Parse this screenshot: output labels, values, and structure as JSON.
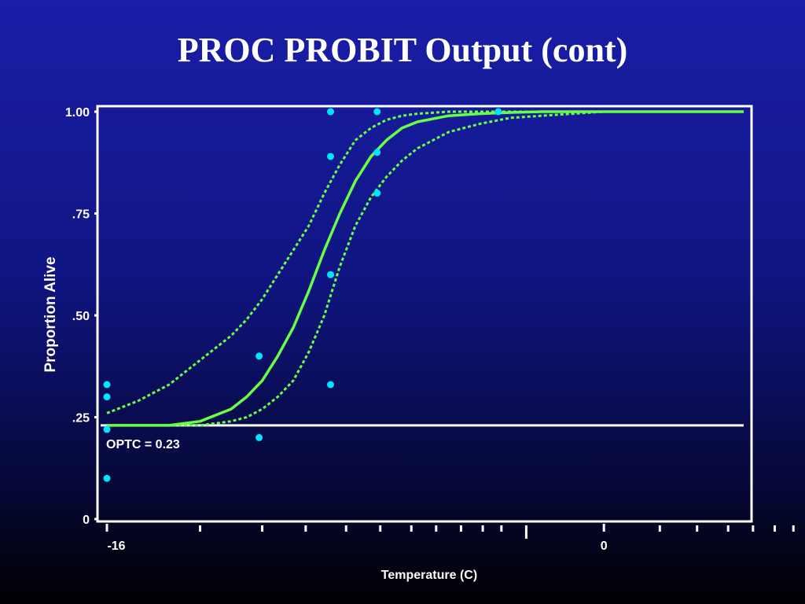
{
  "title": "PROC PROBIT Output (cont)",
  "chart_data": {
    "type": "scatter",
    "ylabel": "Proportion Alive",
    "xlabel": "Temperature (C)",
    "xlim": [
      -16,
      4.5
    ],
    "ylim": [
      0,
      1
    ],
    "y_ticks": [
      {
        "value": 1.0,
        "label": "1.00"
      },
      {
        "value": 0.75,
        "label": ".75"
      },
      {
        "value": 0.5,
        "label": ".50"
      },
      {
        "value": 0.25,
        "label": ".25"
      },
      {
        "value": 0.0,
        "label": "0"
      }
    ],
    "x_tick_labels": [
      {
        "value": -16,
        "label": "-16"
      },
      {
        "value": 0,
        "label": "0"
      }
    ],
    "x_minor_ticks": [
      -13,
      -11,
      -9.6,
      -8.3,
      -7.2,
      -6.2,
      -5.4,
      -4.6,
      -3.9,
      -3.3,
      1.8,
      3.0,
      4.0,
      4.8,
      5.5,
      6.1,
      6.6,
      7.0
    ],
    "points": [
      {
        "x": -16,
        "y": 0.33
      },
      {
        "x": -16,
        "y": 0.3
      },
      {
        "x": -16,
        "y": 0.22
      },
      {
        "x": -16,
        "y": 0.1
      },
      {
        "x": -11.1,
        "y": 0.4
      },
      {
        "x": -11.1,
        "y": 0.2
      },
      {
        "x": -8.8,
        "y": 1.0
      },
      {
        "x": -8.8,
        "y": 0.89
      },
      {
        "x": -8.8,
        "y": 0.6
      },
      {
        "x": -8.8,
        "y": 0.33
      },
      {
        "x": -7.3,
        "y": 1.0
      },
      {
        "x": -7.3,
        "y": 0.9
      },
      {
        "x": -7.3,
        "y": 0.8
      },
      {
        "x": -3.4,
        "y": 1.0
      }
    ],
    "series": [
      {
        "style": "solid",
        "x": [
          -16,
          -14,
          -13,
          -12,
          -11.5,
          -11,
          -10.5,
          -10,
          -9.5,
          -9,
          -8.5,
          -8,
          -7.5,
          -7,
          -6.5,
          -6,
          -5,
          -4,
          -3,
          -2,
          -1,
          0,
          2,
          4.5
        ],
        "y": [
          0.23,
          0.23,
          0.24,
          0.27,
          0.3,
          0.34,
          0.4,
          0.47,
          0.56,
          0.66,
          0.75,
          0.83,
          0.89,
          0.93,
          0.96,
          0.975,
          0.99,
          0.995,
          0.998,
          1.0,
          1.0,
          1.0,
          1.0,
          1.0
        ]
      },
      {
        "style": "dashed",
        "x": [
          -16,
          -15,
          -14,
          -13,
          -12,
          -11.5,
          -11,
          -10.5,
          -10,
          -9.5,
          -9,
          -8.5,
          -8,
          -7.5,
          -7,
          -6.5,
          -6,
          -5,
          -4,
          -3,
          -2,
          0,
          2,
          4.5
        ],
        "y": [
          0.26,
          0.29,
          0.33,
          0.39,
          0.45,
          0.49,
          0.54,
          0.6,
          0.66,
          0.72,
          0.8,
          0.87,
          0.93,
          0.96,
          0.98,
          0.99,
          0.995,
          1.0,
          1.0,
          1.0,
          1.0,
          1.0,
          1.0,
          1.0
        ]
      },
      {
        "style": "dashed",
        "x": [
          -16,
          -14,
          -13,
          -12,
          -11.5,
          -11,
          -10.5,
          -10,
          -9.5,
          -9,
          -8.5,
          -8,
          -7.5,
          -7,
          -6.5,
          -6,
          -5,
          -4,
          -3,
          -2,
          -1,
          0,
          2,
          4.5
        ],
        "y": [
          0.23,
          0.23,
          0.23,
          0.24,
          0.25,
          0.27,
          0.3,
          0.34,
          0.41,
          0.5,
          0.62,
          0.72,
          0.79,
          0.84,
          0.88,
          0.91,
          0.95,
          0.97,
          0.985,
          0.99,
          0.995,
          1.0,
          1.0,
          1.0
        ]
      }
    ],
    "reference_line": {
      "y": 0.23,
      "label": "OPTC = 0.23"
    },
    "colors": {
      "curve": "#66ff44",
      "points": "#00e5ff",
      "axis": "#ffffff",
      "reference": "#ffffff"
    }
  }
}
